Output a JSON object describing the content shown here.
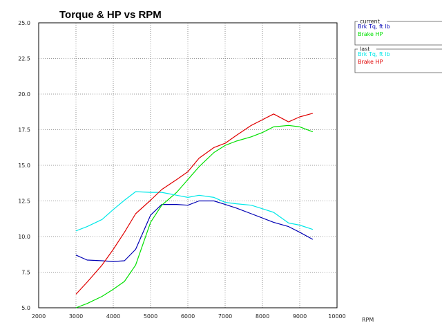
{
  "chart_data": {
    "type": "line",
    "title": "Torque & HP vs RPM",
    "xlabel": "RPM",
    "ylabel": "",
    "xlim": [
      2000,
      10000
    ],
    "ylim": [
      5.0,
      25.0
    ],
    "xticks": [
      "2000",
      "3000",
      "4000",
      "5000",
      "6000",
      "7000",
      "8000",
      "9000",
      "10000"
    ],
    "yticks": [
      "5.0",
      "7.5",
      "10.0",
      "12.5",
      "15.0",
      "17.5",
      "20.0",
      "22.5",
      "25.0"
    ],
    "grid": true,
    "legend_placement": "right",
    "legend_groups": [
      {
        "title": "current",
        "entries": [
          {
            "name": "Brk Tq, ft lb",
            "color": "#0000b4"
          },
          {
            "name": "Brake HP",
            "color": "#00e000"
          }
        ]
      },
      {
        "title": "last",
        "entries": [
          {
            "name": "Brk Tq, ft lb",
            "color": "#00e8e8"
          },
          {
            "name": "Brake HP",
            "color": "#e00000"
          }
        ]
      }
    ],
    "series": [
      {
        "group": "current",
        "name": "Brk Tq, ft lb",
        "color": "#0000b4",
        "x": [
          3000,
          3300,
          3700,
          4000,
          4300,
          4600,
          5000,
          5300,
          5700,
          6000,
          6300,
          6700,
          7000,
          7300,
          7700,
          8000,
          8300,
          8700,
          9000,
          9350
        ],
        "y": [
          8.7,
          8.35,
          8.3,
          8.25,
          8.3,
          9.1,
          11.5,
          12.25,
          12.25,
          12.2,
          12.5,
          12.5,
          12.25,
          12.0,
          11.6,
          11.3,
          11.0,
          10.7,
          10.3,
          9.8
        ]
      },
      {
        "group": "current",
        "name": "Brake HP",
        "color": "#00e000",
        "x": [
          3000,
          3300,
          3700,
          4000,
          4300,
          4600,
          5000,
          5300,
          5700,
          6000,
          6300,
          6700,
          7000,
          7300,
          7700,
          8000,
          8300,
          8700,
          9000,
          9350
        ],
        "y": [
          5.0,
          5.3,
          5.8,
          6.3,
          6.85,
          8.0,
          11.0,
          12.2,
          13.1,
          14.0,
          14.9,
          15.9,
          16.4,
          16.7,
          17.0,
          17.3,
          17.7,
          17.8,
          17.7,
          17.35
        ]
      },
      {
        "group": "last",
        "name": "Brk Tq, ft lb",
        "color": "#00e8e8",
        "x": [
          3000,
          3300,
          3700,
          4000,
          4300,
          4600,
          5000,
          5300,
          5700,
          6000,
          6300,
          6700,
          7000,
          7300,
          7700,
          8000,
          8300,
          8700,
          9000,
          9350
        ],
        "y": [
          10.4,
          10.7,
          11.2,
          11.9,
          12.55,
          13.15,
          13.1,
          13.1,
          12.9,
          12.75,
          12.9,
          12.75,
          12.4,
          12.3,
          12.2,
          11.95,
          11.7,
          10.95,
          10.8,
          10.5
        ]
      },
      {
        "group": "last",
        "name": "Brake HP",
        "color": "#e00000",
        "x": [
          3000,
          3300,
          3700,
          4000,
          4300,
          4600,
          5000,
          5300,
          5700,
          6000,
          6300,
          6700,
          7000,
          7300,
          7700,
          8000,
          8300,
          8700,
          9000,
          9350
        ],
        "y": [
          5.95,
          6.8,
          8.0,
          9.1,
          10.3,
          11.6,
          12.55,
          13.3,
          14.0,
          14.55,
          15.5,
          16.25,
          16.55,
          17.1,
          17.8,
          18.2,
          18.6,
          18.05,
          18.4,
          18.65
        ]
      }
    ]
  }
}
